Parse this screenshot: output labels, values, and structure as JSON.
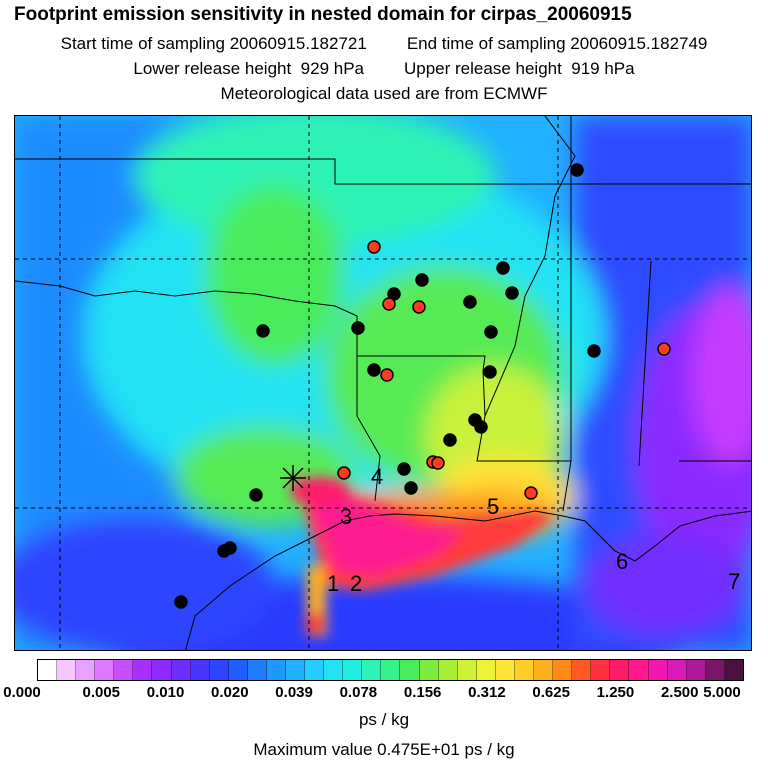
{
  "header": {
    "title": "Footprint emission sensitivity in nested domain for cirpas_20060915",
    "start_label": "Start time of sampling 20060915.182721",
    "end_label": "End time of sampling 20060915.182749",
    "lower_label": "Lower release height  929 hPa",
    "upper_label": "Upper release height  919 hPa",
    "met_label": "Meteorological data used are from ECMWF"
  },
  "map": {
    "region_labels": [
      "1",
      "2",
      "3",
      "4",
      "5",
      "6",
      "7"
    ],
    "colors": {
      "deep_blue": "#2a3bff",
      "blue": "#1e7dff",
      "light_blue": "#27b4ff",
      "cyan": "#22eef0",
      "aqua": "#2ff2b6",
      "green": "#56ea55",
      "yellow_green": "#c8f23a",
      "yellow": "#ffe33a",
      "orange": "#ffb020",
      "red": "#ff3a3a",
      "magenta": "#ff1a90",
      "purple": "#9b2cff",
      "violet": "#c23bff",
      "site_black": "#000000",
      "site_red": "#ff3b1f"
    }
  },
  "legend": {
    "ticks": [
      "0.000",
      "0.005",
      "0.010",
      "0.020",
      "0.039",
      "0.078",
      "0.156",
      "0.312",
      "0.625",
      "1.250",
      "2.500",
      "5.000"
    ],
    "colors": [
      "#ffffff",
      "#f6c8ff",
      "#eaa0ff",
      "#dd78ff",
      "#c84dff",
      "#a830ff",
      "#8a2bff",
      "#6f2dff",
      "#4a35ff",
      "#2e45ff",
      "#1f5fff",
      "#1e7dff",
      "#1e97ff",
      "#22b1ff",
      "#26cbff",
      "#22e2f4",
      "#22eee0",
      "#2ff2b6",
      "#38f08a",
      "#4aec5a",
      "#7cec3e",
      "#a8ef38",
      "#d0f236",
      "#eef238",
      "#ffe53a",
      "#ffcc2a",
      "#ffb020",
      "#ff8a1a",
      "#ff5a24",
      "#ff3040",
      "#ff1a6a",
      "#ff1890",
      "#f018b0",
      "#d81ab8",
      "#b01a9a",
      "#7a1668",
      "#4a1040"
    ],
    "units": "ps / kg",
    "max_value": "Maximum value  0.475E+01 ps / kg"
  }
}
